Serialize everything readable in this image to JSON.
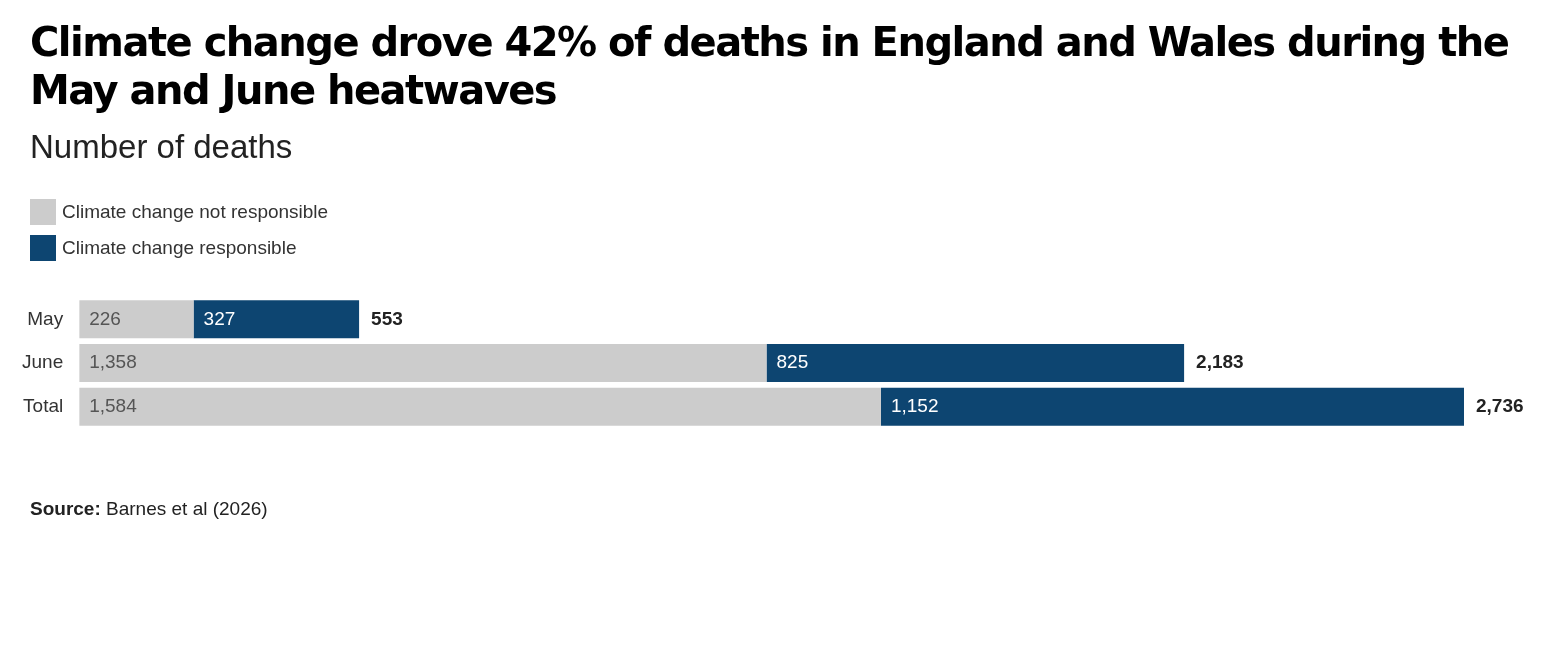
{
  "chart_data": {
    "type": "bar",
    "orientation": "horizontal",
    "stacked": true,
    "title": "Climate change drove 42% of deaths in England and Wales during the May and June heatwaves",
    "subtitle": "Number of deaths",
    "categories": [
      "May",
      "June",
      "Total"
    ],
    "series": [
      {
        "name": "Climate change not responsible",
        "color": "#cccccc",
        "values": [
          226,
          1358,
          1584
        ],
        "value_labels": [
          "226",
          "1,358",
          "1,584"
        ]
      },
      {
        "name": "Climate change responsible",
        "color": "#0d4571",
        "values": [
          327,
          825,
          1152
        ],
        "value_labels": [
          "327",
          "825",
          "1,152"
        ]
      }
    ],
    "totals": [
      "553",
      "2,183",
      "2,736"
    ],
    "legend": "top left",
    "grid": false,
    "tick_labels": "y",
    "annotations": [
      "Source: Barnes et al (2026)"
    ]
  }
}
